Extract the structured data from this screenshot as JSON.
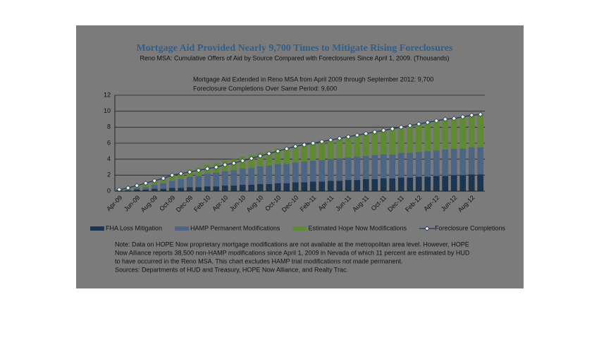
{
  "chart_data": {
    "type": "stacked-bar-line",
    "title": "Mortgage Aid Provided Nearly 9,700 Times to Mitigate Rising Foreclosures",
    "subtitle": "Reno MSA: Cumulative Offers of Aid by Source Compared with Foreclosures Since April 1, 2009. (Thousands)",
    "annotations": [
      "Mortgage Aid Extended in Reno MSA from April 2009 through September 2012: 9,700",
      "Foreclosure Completions Over Same Period: 9,600"
    ],
    "categories": [
      "Apr-09",
      null,
      "Jun-09",
      null,
      "Aug-09",
      null,
      "Oct-09",
      null,
      "Dec-09",
      null,
      "Feb-10",
      null,
      "Apr-10",
      null,
      "Jun-10",
      null,
      "Aug-10",
      null,
      "Oct-10",
      null,
      "Dec-10",
      null,
      "Feb-11",
      null,
      "Apr-11",
      null,
      "Jun-11",
      null,
      "Aug-11",
      null,
      "Oct-11",
      null,
      "Dec-11",
      null,
      "Feb-12",
      null,
      "Apr-12",
      null,
      "Jun-12",
      null,
      "Aug-12",
      null
    ],
    "series": [
      {
        "name": "FHA Loss Mitigation",
        "color": "#1c3553",
        "kind": "bar",
        "values": [
          0.1,
          0.1,
          0.2,
          0.2,
          0.3,
          0.3,
          0.4,
          0.4,
          0.5,
          0.5,
          0.6,
          0.6,
          0.7,
          0.7,
          0.8,
          0.8,
          0.9,
          0.9,
          1.0,
          1.0,
          1.1,
          1.1,
          1.2,
          1.2,
          1.3,
          1.3,
          1.4,
          1.4,
          1.5,
          1.5,
          1.6,
          1.6,
          1.7,
          1.7,
          1.8,
          1.8,
          1.9,
          1.9,
          2.0,
          2.0,
          2.1,
          2.1
        ]
      },
      {
        "name": "HAMP Permanent Modifications",
        "color": "#4c6582",
        "kind": "bar",
        "values": [
          0,
          0.1,
          0.2,
          0.3,
          0.5,
          0.7,
          0.9,
          1.1,
          1.3,
          1.4,
          1.6,
          1.7,
          1.8,
          1.9,
          2.0,
          2.1,
          2.2,
          2.3,
          2.4,
          2.4,
          2.5,
          2.6,
          2.6,
          2.7,
          2.7,
          2.8,
          2.8,
          2.9,
          2.9,
          3.0,
          3.0,
          3.0,
          3.1,
          3.1,
          3.1,
          3.2,
          3.2,
          3.3,
          3.3,
          3.3,
          3.4,
          3.4
        ]
      },
      {
        "name": "Estimated Hope Now Modifications",
        "color": "#5f8a32",
        "kind": "bar",
        "values": [
          0.1,
          0.2,
          0.3,
          0.4,
          0.5,
          0.6,
          0.7,
          0.8,
          0.9,
          1.0,
          1.1,
          1.2,
          1.3,
          1.4,
          1.5,
          1.6,
          1.7,
          1.8,
          1.9,
          2.0,
          2.1,
          2.2,
          2.3,
          2.4,
          2.5,
          2.6,
          2.7,
          2.8,
          2.9,
          3.0,
          3.1,
          3.2,
          3.3,
          3.4,
          3.5,
          3.6,
          3.7,
          3.8,
          3.9,
          4.0,
          4.1,
          4.2
        ]
      },
      {
        "name": "Foreclosure Completions",
        "color": "#2e4260",
        "kind": "line",
        "values": [
          0.2,
          0.4,
          0.7,
          1.0,
          1.3,
          1.6,
          2.0,
          2.2,
          2.4,
          2.6,
          2.8,
          3.0,
          3.3,
          3.5,
          3.8,
          4.1,
          4.4,
          4.7,
          5.0,
          5.3,
          5.6,
          5.8,
          6.0,
          6.2,
          6.4,
          6.6,
          6.8,
          7.0,
          7.2,
          7.4,
          7.6,
          7.8,
          8.0,
          8.2,
          8.4,
          8.6,
          8.8,
          9.0,
          9.1,
          9.3,
          9.5,
          9.6
        ]
      }
    ],
    "ylim": [
      0,
      12
    ],
    "yticks": [
      0,
      2,
      4,
      6,
      8,
      10,
      12
    ],
    "grid": true,
    "notes": [
      "Note: Data on HOPE Now proprietary mortgage modifications are not available at the metropolitan area level. However, HOPE",
      "Now Alliance reports 38,500 non-HAMP modifications since April 1, 2009 in Nevada of which 11 percent are estimated by HUD",
      "to have occurred in the Reno MSA. This chart excludes HAMP trial modifications not made permanent.",
      "Sources: Departments of HUD and Treasury, HOPE Now Alliance, and Realty Trac."
    ]
  }
}
